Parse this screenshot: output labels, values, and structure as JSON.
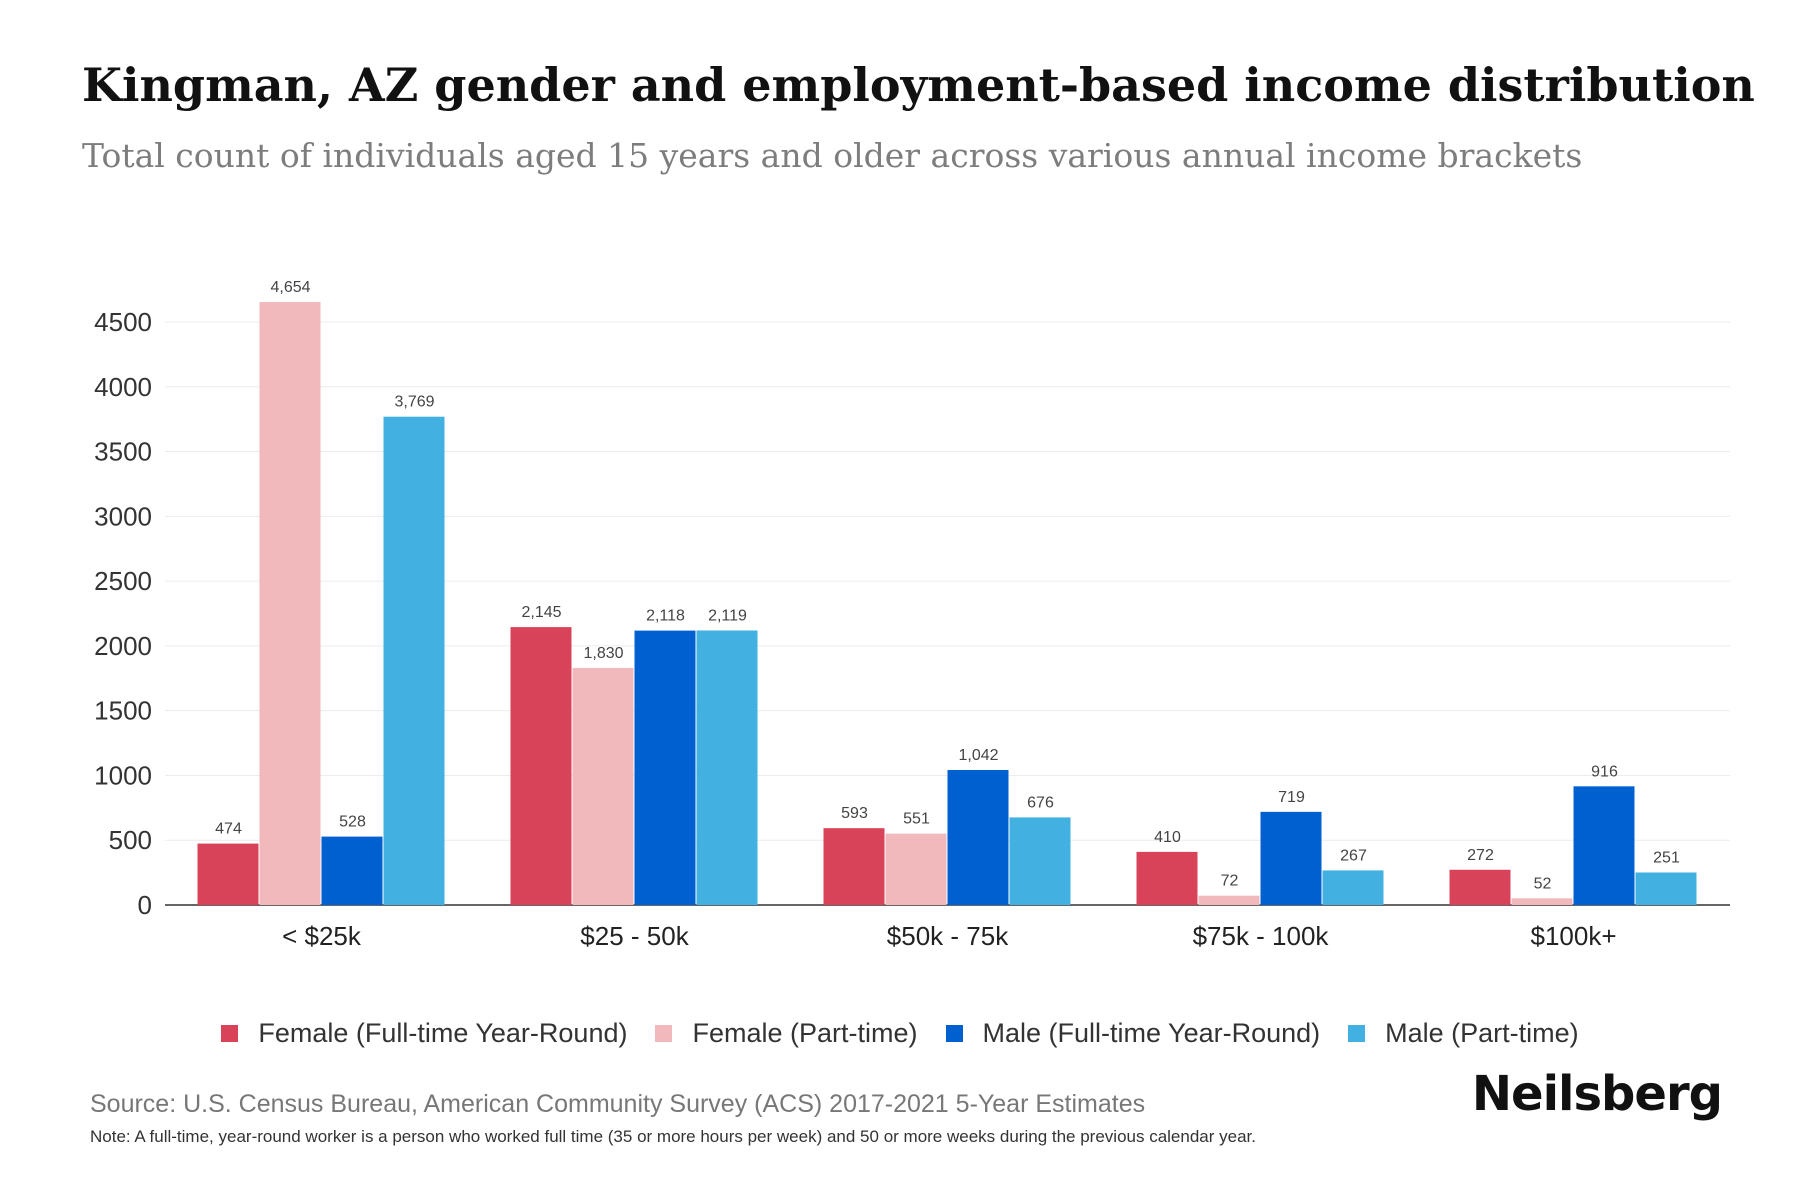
{
  "title": "Kingman, AZ gender and employment-based income distribution",
  "subtitle": "Total count of individuals aged 15 years and older across various annual income brackets",
  "source": "Source: U.S. Census Bureau, American Community Survey (ACS) 2017-2021 5-Year Estimates",
  "note": "Note: A full-time, year-round worker is a person who worked full time (35 or more hours per week) and 50 or more weeks during the previous calendar year.",
  "brand": "Neilsberg",
  "chart_data": {
    "type": "bar",
    "categories": [
      "< $25k",
      "$25 - 50k",
      "$50k - 75k",
      "$75k - 100k",
      "$100k+"
    ],
    "series": [
      {
        "name": "Female (Full-time Year-Round)",
        "color": "#d9435a",
        "values": [
          474,
          2145,
          593,
          410,
          272
        ],
        "labels": [
          "474",
          "2,145",
          "593",
          "410",
          "272"
        ]
      },
      {
        "name": "Female (Part-time)",
        "color": "#f2b9bd",
        "values": [
          4654,
          1830,
          551,
          72,
          52
        ],
        "labels": [
          "4,654",
          "1,830",
          "551",
          "72",
          "52"
        ]
      },
      {
        "name": "Male (Full-time Year-Round)",
        "color": "#0060d0",
        "values": [
          528,
          2118,
          1042,
          719,
          916
        ],
        "labels": [
          "528",
          "2,118",
          "1,042",
          "719",
          "916"
        ]
      },
      {
        "name": "Male (Part-time)",
        "color": "#42b0e0",
        "values": [
          3769,
          2119,
          676,
          267,
          251
        ],
        "labels": [
          "3,769",
          "2,119",
          "676",
          "267",
          "251"
        ]
      }
    ],
    "yticks": [
      "0",
      "500",
      "1000",
      "1500",
      "2000",
      "2500",
      "3000",
      "3500",
      "4000",
      "4500"
    ],
    "ylim": [
      0,
      4500
    ],
    "xlabel": "",
    "ylabel": "",
    "grid": true,
    "legend_position": "bottom-center"
  }
}
